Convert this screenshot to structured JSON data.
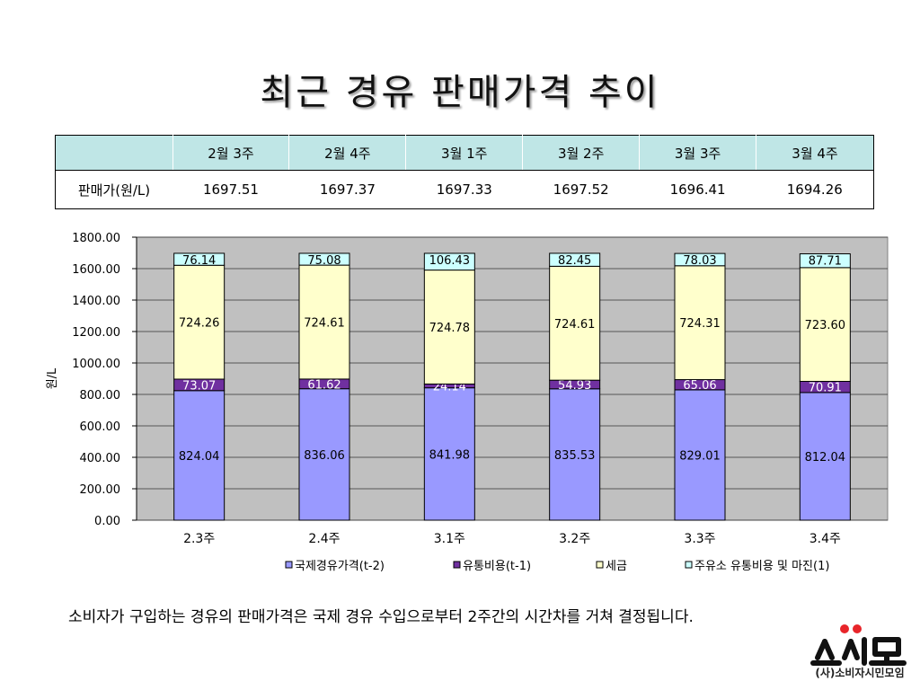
{
  "title": "최근 경유 판매가격 추이",
  "table": {
    "headers": [
      "",
      "2월 3주",
      "2월 4주",
      "3월 1주",
      "3월 2주",
      "3월 3주",
      "3월 4주"
    ],
    "row_label": "판매가(원/L)",
    "values": [
      "1697.51",
      "1697.37",
      "1697.33",
      "1697.52",
      "1696.41",
      "1694.26"
    ]
  },
  "chart_data": {
    "type": "bar",
    "stacked": true,
    "categories": [
      "2.3주",
      "2.4주",
      "3.1주",
      "3.2주",
      "3.3주",
      "3.4주"
    ],
    "ylabel": "원/L",
    "ylim": [
      0,
      1800
    ],
    "yticks": [
      "0.00",
      "200.00",
      "400.00",
      "600.00",
      "800.00",
      "1000.00",
      "1200.00",
      "1400.00",
      "1600.00",
      "1800.00"
    ],
    "grid": true,
    "legend_position": "bottom",
    "series": [
      {
        "name": "국제경유가격(t-2)",
        "color": "#9999ff",
        "values": [
          824.04,
          836.06,
          841.98,
          835.53,
          829.01,
          812.04
        ],
        "labels": [
          "824.04",
          "836.06",
          "841.98",
          "835.53",
          "829.01",
          "812.04"
        ]
      },
      {
        "name": "유통비용(t-1)",
        "color": "#7030a0",
        "values": [
          73.07,
          61.62,
          24.14,
          54.93,
          65.06,
          70.91
        ],
        "labels": [
          "73.07",
          "61.62",
          "24.14",
          "54.93",
          "65.06",
          "70.91"
        ]
      },
      {
        "name": "세금",
        "color": "#ffffcc",
        "values": [
          724.26,
          724.61,
          724.78,
          724.61,
          724.31,
          723.6
        ],
        "labels": [
          "724.26",
          "724.61",
          "724.78",
          "724.61",
          "724.31",
          "723.60"
        ]
      },
      {
        "name": "주유소 유통비용 및 마진(1)",
        "color": "#ccffff",
        "values": [
          76.14,
          75.08,
          106.43,
          82.45,
          78.03,
          87.71
        ],
        "labels": [
          "76.14",
          "75.08",
          "106.43",
          "82.45",
          "78.03",
          "87.71"
        ]
      }
    ]
  },
  "note": "소비자가 구입하는 경유의 판매가격은 국제 경유 수입으로부터 2주간의 시간차를 거쳐 결정됩니다.",
  "logo": {
    "text": "(사)소비자시민모임"
  }
}
